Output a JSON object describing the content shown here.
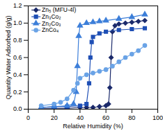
{
  "chart_data": {
    "type": "line",
    "x_label": "Relative Humidity (%)",
    "y_label": "Quantity Water Adsorbed (g/g)",
    "xlim": [
      0,
      100
    ],
    "xticks": [
      0,
      20,
      40,
      60,
      80,
      100
    ],
    "ylim": [
      0,
      1.2
    ],
    "yticks": [
      {
        "value": 0,
        "label": "0.0"
      },
      0.2,
      0.4,
      0.6,
      0.8,
      {
        "value": 1,
        "label": "1.0"
      },
      1.2
    ],
    "grid": false,
    "legend": "upper left",
    "series": [
      {
        "name": "Zn₅ (MFU-4l)",
        "color": "#1b2a6b",
        "marker": "diamond",
        "line_style": "solid",
        "x": [
          10,
          20,
          30,
          40,
          45,
          50,
          55,
          60,
          62,
          63,
          64,
          65,
          67,
          70,
          75,
          80,
          85,
          90
        ],
        "values": [
          0.01,
          0.01,
          0.01,
          0.02,
          0.02,
          0.02,
          0.03,
          0.04,
          0.06,
          0.25,
          0.6,
          0.9,
          0.97,
          0.99,
          1.0,
          1.01,
          1.02,
          1.03
        ]
      },
      {
        "name": "Zn₃Co₂",
        "color": "#1f4fb5",
        "marker": "square",
        "line_style": "solid",
        "x": [
          10,
          20,
          30,
          40,
          45,
          47,
          48,
          49,
          50,
          55,
          60,
          70,
          80,
          90
        ],
        "values": [
          0.02,
          0.03,
          0.03,
          0.04,
          0.06,
          0.3,
          0.6,
          0.78,
          0.84,
          0.88,
          0.9,
          0.92,
          0.93,
          0.94
        ]
      },
      {
        "name": "Zn₂Co₃",
        "color": "#3d7fd9",
        "marker": "triangle",
        "line_style": "solid",
        "x": [
          10,
          20,
          30,
          35,
          37,
          38,
          39,
          40,
          45,
          50,
          55,
          60,
          70,
          80,
          90
        ],
        "values": [
          0.02,
          0.03,
          0.04,
          0.06,
          0.2,
          0.5,
          0.85,
          0.97,
          1.0,
          1.01,
          1.02,
          1.03,
          1.05,
          1.07,
          1.1
        ]
      },
      {
        "name": "ZnCo₄",
        "color": "#6aa3e6",
        "marker": "circle",
        "line_style": "solid",
        "x": [
          10,
          20,
          25,
          30,
          35,
          38,
          40,
          45,
          50,
          55,
          60,
          65,
          70,
          75,
          80,
          85,
          90
        ],
        "values": [
          0.04,
          0.06,
          0.08,
          0.12,
          0.22,
          0.3,
          0.36,
          0.4,
          0.42,
          0.44,
          0.46,
          0.5,
          0.55,
          0.6,
          0.64,
          0.68,
          0.74
        ]
      }
    ]
  }
}
